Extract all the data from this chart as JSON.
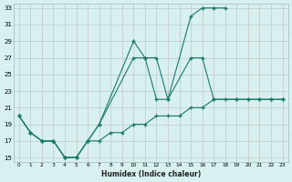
{
  "xlabel": "Humidex (Indice chaleur)",
  "bg_color": "#d8f0f0",
  "grid_color": "#c0c8c8",
  "line_color": "#1a7a6a",
  "xlim": [
    -0.5,
    23.5
  ],
  "ylim": [
    14.5,
    33.5
  ],
  "yticks": [
    15,
    17,
    19,
    21,
    23,
    25,
    27,
    29,
    31,
    33
  ],
  "xticks": [
    0,
    1,
    2,
    3,
    4,
    5,
    6,
    7,
    8,
    9,
    10,
    11,
    12,
    13,
    14,
    15,
    16,
    17,
    18,
    19,
    20,
    21,
    22,
    23
  ],
  "lines": [
    {
      "x": [
        0,
        1,
        2,
        3,
        4,
        5,
        6,
        7,
        10,
        11,
        12,
        13,
        15,
        16,
        17,
        18
      ],
      "y": [
        20,
        18,
        17,
        17,
        15,
        15,
        17,
        19,
        29,
        27,
        27,
        22,
        32,
        33,
        33,
        33
      ]
    },
    {
      "x": [
        0,
        1,
        2,
        3,
        4,
        5,
        6,
        7,
        10,
        11,
        12,
        13,
        15,
        16,
        17,
        19,
        20,
        21,
        22,
        23
      ],
      "y": [
        20,
        18,
        17,
        17,
        15,
        15,
        17,
        19,
        27,
        27,
        22,
        22,
        27,
        27,
        22,
        22,
        22,
        22,
        22,
        22
      ]
    },
    {
      "x": [
        0,
        1,
        2,
        3,
        4,
        5,
        6,
        7,
        8,
        9,
        10,
        11,
        12,
        13,
        14,
        15,
        16,
        17,
        18,
        19,
        20,
        21,
        22,
        23
      ],
      "y": [
        20,
        18,
        17,
        17,
        15,
        15,
        17,
        17,
        18,
        18,
        19,
        19,
        20,
        20,
        20,
        21,
        21,
        22,
        22,
        22,
        22,
        22,
        22,
        22
      ]
    }
  ]
}
